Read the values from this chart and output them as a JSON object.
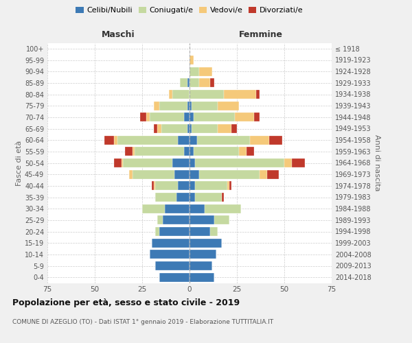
{
  "age_groups": [
    "0-4",
    "5-9",
    "10-14",
    "15-19",
    "20-24",
    "25-29",
    "30-34",
    "35-39",
    "40-44",
    "45-49",
    "50-54",
    "55-59",
    "60-64",
    "65-69",
    "70-74",
    "75-79",
    "80-84",
    "85-89",
    "90-94",
    "95-99",
    "100+"
  ],
  "birth_years": [
    "2014-2018",
    "2009-2013",
    "2004-2008",
    "1999-2003",
    "1994-1998",
    "1989-1993",
    "1984-1988",
    "1979-1983",
    "1974-1978",
    "1969-1973",
    "1964-1968",
    "1959-1963",
    "1954-1958",
    "1949-1953",
    "1944-1948",
    "1939-1943",
    "1934-1938",
    "1929-1933",
    "1924-1928",
    "1919-1923",
    "≤ 1918"
  ],
  "male": {
    "celibi": [
      16,
      18,
      21,
      20,
      16,
      14,
      13,
      7,
      6,
      8,
      9,
      3,
      6,
      1,
      3,
      1,
      0,
      1,
      0,
      0,
      0
    ],
    "coniugati": [
      0,
      0,
      0,
      0,
      2,
      3,
      12,
      11,
      12,
      22,
      26,
      26,
      32,
      14,
      18,
      15,
      9,
      4,
      0,
      0,
      0
    ],
    "vedovi": [
      0,
      0,
      0,
      0,
      0,
      0,
      0,
      0,
      1,
      2,
      1,
      1,
      2,
      2,
      2,
      3,
      2,
      0,
      0,
      0,
      0
    ],
    "divorziati": [
      0,
      0,
      0,
      0,
      0,
      0,
      0,
      0,
      1,
      0,
      4,
      4,
      5,
      2,
      3,
      0,
      0,
      0,
      0,
      0,
      0
    ]
  },
  "female": {
    "nubili": [
      13,
      12,
      14,
      17,
      11,
      13,
      8,
      3,
      3,
      5,
      3,
      2,
      4,
      1,
      2,
      1,
      0,
      0,
      0,
      0,
      0
    ],
    "coniugate": [
      0,
      0,
      0,
      0,
      4,
      8,
      19,
      14,
      17,
      32,
      47,
      24,
      28,
      14,
      22,
      14,
      18,
      5,
      5,
      0,
      0
    ],
    "vedove": [
      0,
      0,
      0,
      0,
      0,
      0,
      0,
      0,
      1,
      4,
      4,
      4,
      10,
      7,
      10,
      11,
      17,
      6,
      7,
      2,
      0
    ],
    "divorziate": [
      0,
      0,
      0,
      0,
      0,
      0,
      0,
      1,
      1,
      6,
      7,
      4,
      7,
      3,
      3,
      0,
      2,
      2,
      0,
      0,
      0
    ]
  },
  "colors": {
    "celibi": "#3d7ab5",
    "coniugati": "#c5d9a0",
    "vedovi": "#f5c97a",
    "divorziati": "#c0392b"
  },
  "xlim": 75,
  "title": "Popolazione per età, sesso e stato civile - 2019",
  "subtitle": "COMUNE DI AZEGLIO (TO) - Dati ISTAT 1° gennaio 2019 - Elaborazione TUTTITALIA.IT",
  "ylabel_left": "Fasce di età",
  "ylabel_right": "Anni di nascita",
  "xlabel_left": "Maschi",
  "xlabel_right": "Femmine",
  "bg_color": "#f0f0f0",
  "plot_bg": "#ffffff",
  "legend_labels": [
    "Celibi/Nubili",
    "Coniugati/e",
    "Vedovi/e",
    "Divorziati/e"
  ]
}
